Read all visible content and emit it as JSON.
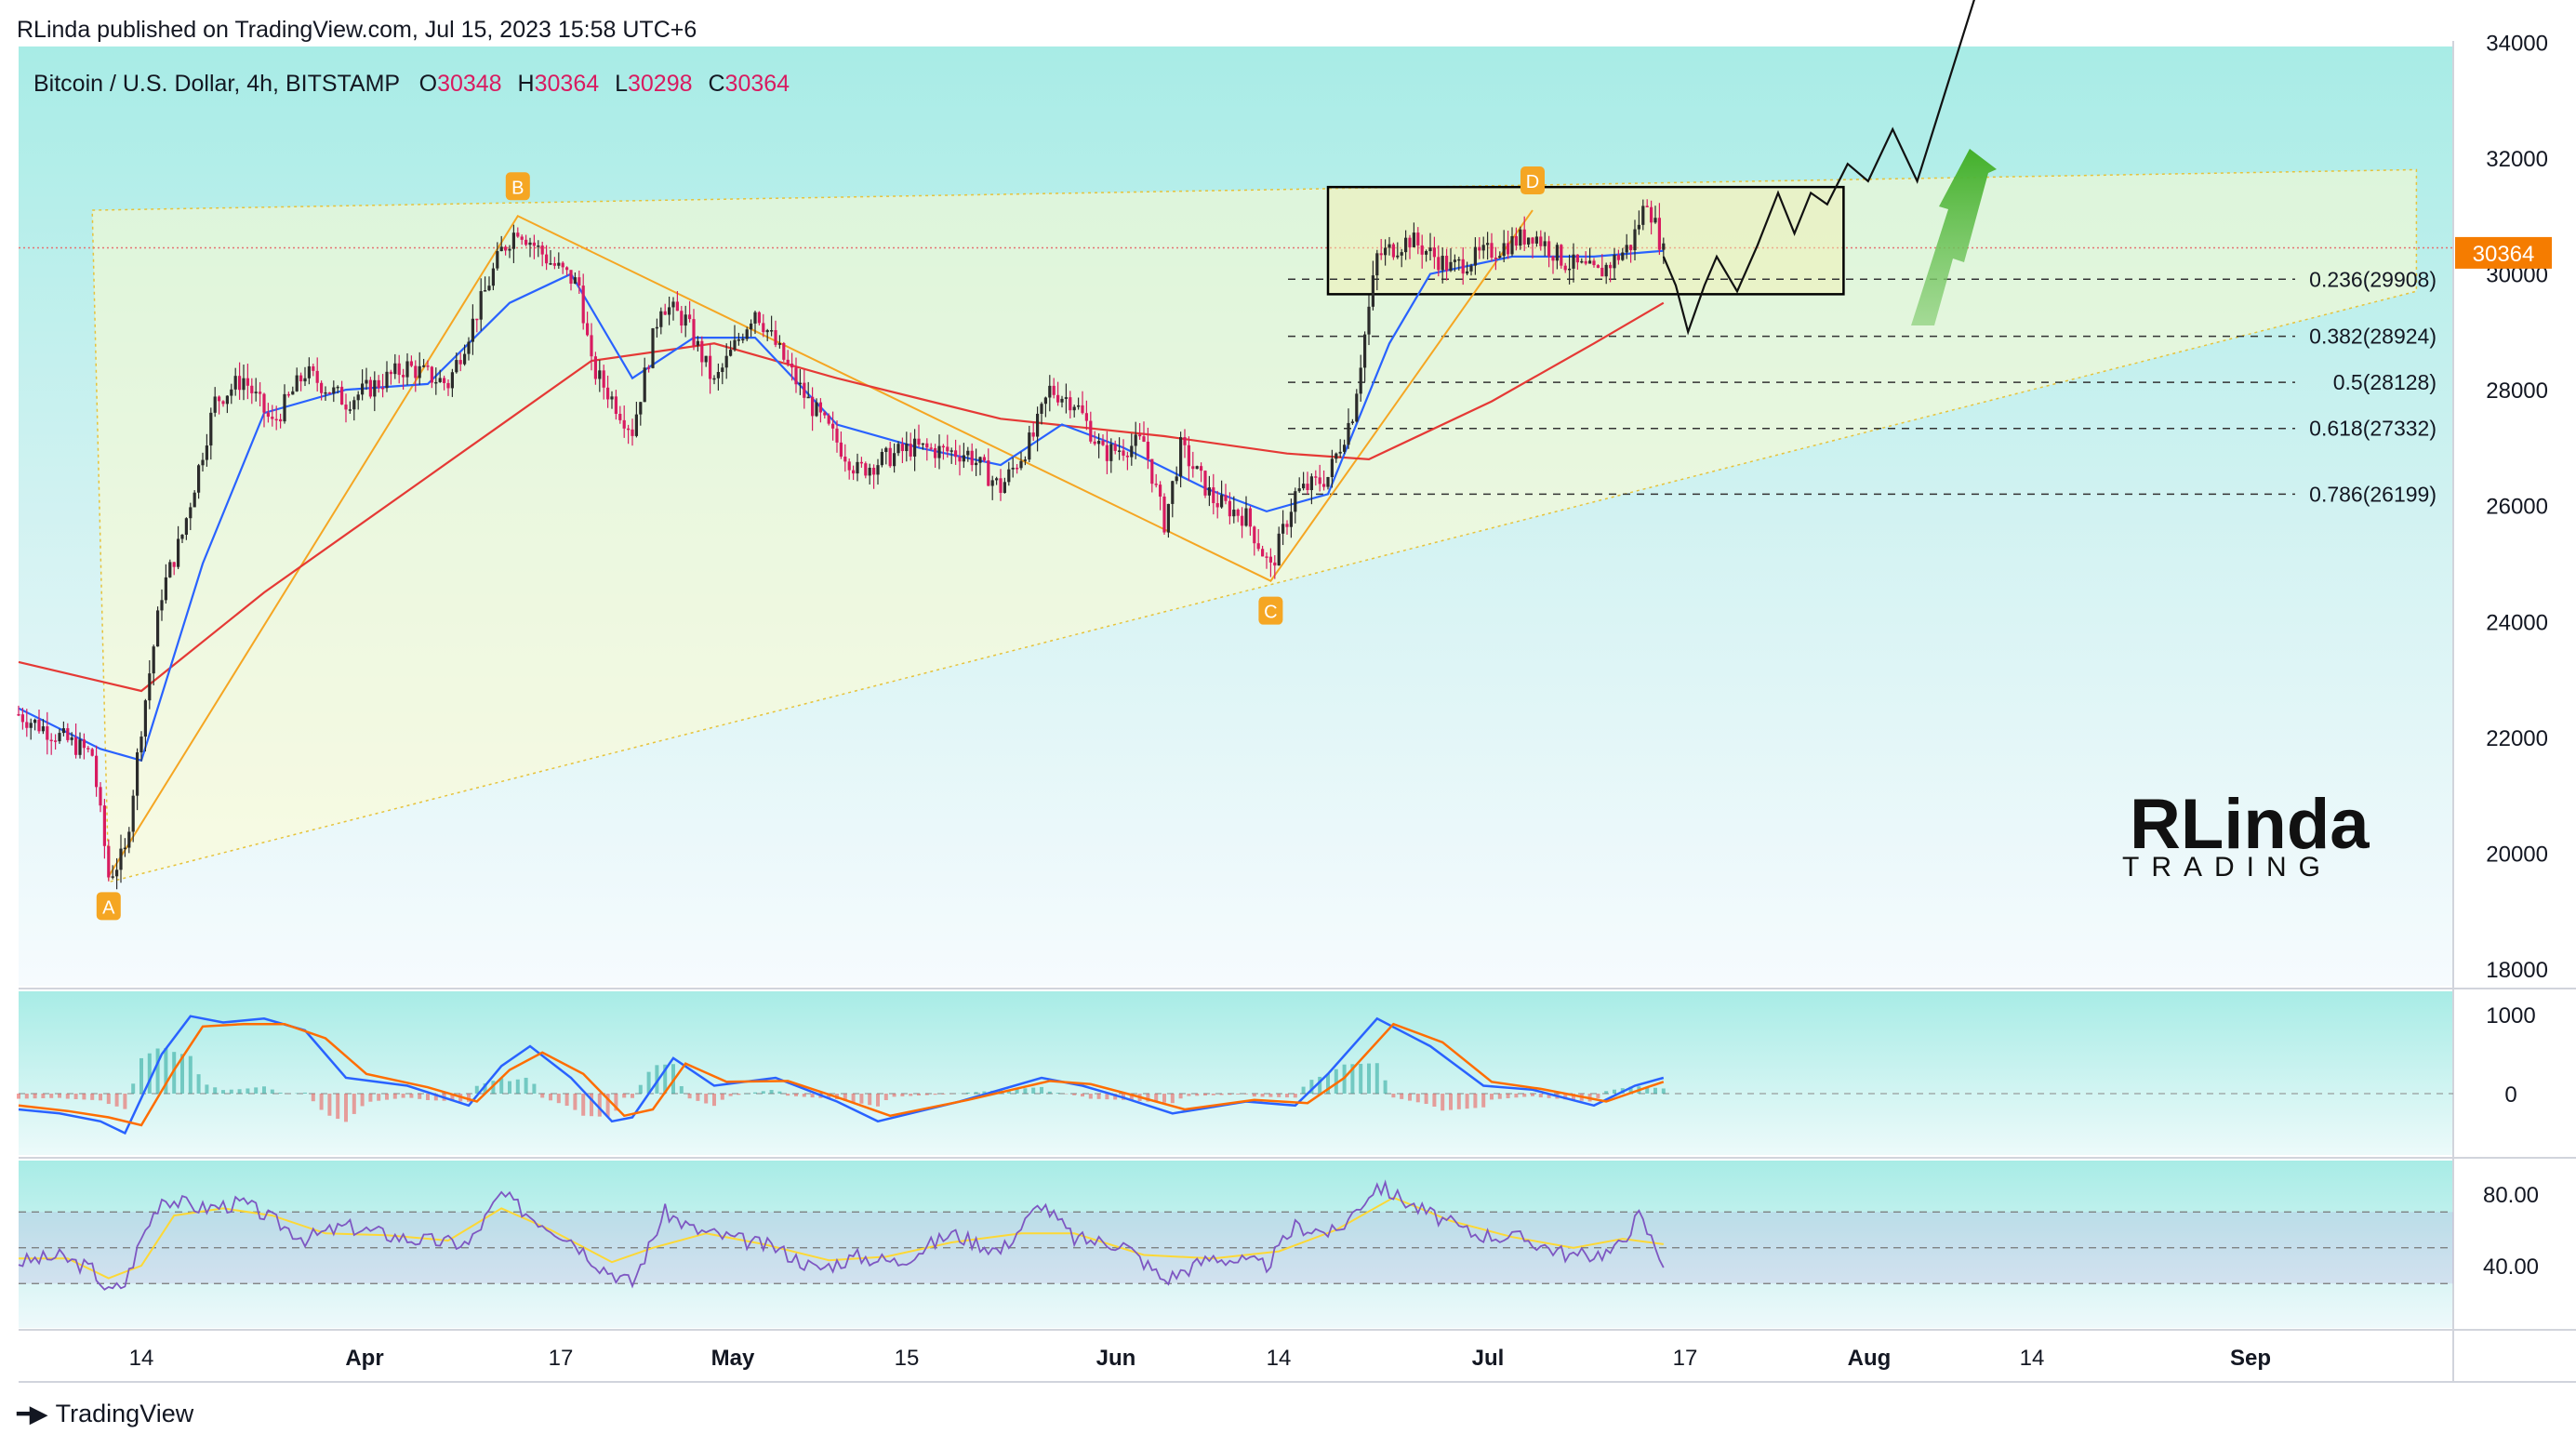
{
  "attribution": "RLinda published on TradingView.com, Jul 15, 2023 15:58 UTC+6",
  "footer": {
    "brand": "TradingView"
  },
  "header": {
    "symbol": "Bitcoin / U.S. Dollar, 4h, BITSTAMP",
    "o_label": "O",
    "o_value": "30348",
    "h_label": "H",
    "h_value": "30364",
    "l_label": "L",
    "l_value": "30298",
    "c_label": "C",
    "c_value": "30364"
  },
  "watermark": {
    "line1": "RLinda",
    "line2": "TRADING"
  },
  "colors": {
    "bull": "#2b2b2b",
    "bear": "#d81b60",
    "ema_fast": "#2962ff",
    "ema_slow": "#e53935",
    "pattern": "#f5a623",
    "price_tag": "#f57c00",
    "arrow": "#4caf50",
    "rsi_line": "#7e57c2",
    "rsi_signal": "#fdd835",
    "macd": "#2962ff",
    "macd_signal": "#ff6d00"
  },
  "chart_data": [
    {
      "type": "candlestick",
      "title": "Bitcoin / U.S. Dollar, 4h, BITSTAMP",
      "x_ticks": [
        "14",
        "Apr",
        "17",
        "May",
        "15",
        "Jun",
        "14",
        "Jul",
        "17",
        "Aug",
        "14",
        "Sep"
      ],
      "ylim": [
        17500,
        36000
      ],
      "y_ticks": [
        18000,
        20000,
        22000,
        24000,
        26000,
        28000,
        30000,
        32000,
        34000
      ],
      "last_price": "30364",
      "price_path": [
        {
          "x": 0,
          "y": 22400
        },
        {
          "x": 18,
          "y": 21700
        },
        {
          "x": 22,
          "y": 19600
        },
        {
          "x": 26,
          "y": 20000
        },
        {
          "x": 30,
          "y": 22200
        },
        {
          "x": 35,
          "y": 24500
        },
        {
          "x": 40,
          "y": 25500
        },
        {
          "x": 48,
          "y": 27800
        },
        {
          "x": 55,
          "y": 28200
        },
        {
          "x": 62,
          "y": 27400
        },
        {
          "x": 70,
          "y": 28300
        },
        {
          "x": 80,
          "y": 27800
        },
        {
          "x": 95,
          "y": 28400
        },
        {
          "x": 105,
          "y": 28100
        },
        {
          "x": 118,
          "y": 30400
        },
        {
          "x": 122,
          "y": 30800
        },
        {
          "x": 130,
          "y": 30200
        },
        {
          "x": 137,
          "y": 29800
        },
        {
          "x": 140,
          "y": 28400
        },
        {
          "x": 150,
          "y": 27300
        },
        {
          "x": 157,
          "y": 29500
        },
        {
          "x": 163,
          "y": 29200
        },
        {
          "x": 170,
          "y": 28100
        },
        {
          "x": 180,
          "y": 29400
        },
        {
          "x": 192,
          "y": 27900
        },
        {
          "x": 205,
          "y": 26600
        },
        {
          "x": 218,
          "y": 27000
        },
        {
          "x": 232,
          "y": 26900
        },
        {
          "x": 240,
          "y": 26300
        },
        {
          "x": 248,
          "y": 27200
        },
        {
          "x": 252,
          "y": 28000
        },
        {
          "x": 258,
          "y": 27800
        },
        {
          "x": 265,
          "y": 26900
        },
        {
          "x": 275,
          "y": 27100
        },
        {
          "x": 280,
          "y": 25700
        },
        {
          "x": 284,
          "y": 27000
        },
        {
          "x": 292,
          "y": 26100
        },
        {
          "x": 300,
          "y": 25800
        },
        {
          "x": 306,
          "y": 24900
        },
        {
          "x": 312,
          "y": 26200
        },
        {
          "x": 320,
          "y": 26500
        },
        {
          "x": 326,
          "y": 27600
        },
        {
          "x": 332,
          "y": 30300
        },
        {
          "x": 340,
          "y": 30600
        },
        {
          "x": 350,
          "y": 30100
        },
        {
          "x": 360,
          "y": 30400
        },
        {
          "x": 370,
          "y": 30700
        },
        {
          "x": 378,
          "y": 30200
        },
        {
          "x": 386,
          "y": 30000
        },
        {
          "x": 394,
          "y": 30500
        },
        {
          "x": 398,
          "y": 31300
        },
        {
          "x": 402,
          "y": 30364
        }
      ],
      "ema_fast": [
        {
          "x": 0,
          "y": 22500
        },
        {
          "x": 20,
          "y": 21800
        },
        {
          "x": 30,
          "y": 21600
        },
        {
          "x": 45,
          "y": 25000
        },
        {
          "x": 60,
          "y": 27600
        },
        {
          "x": 80,
          "y": 28000
        },
        {
          "x": 100,
          "y": 28100
        },
        {
          "x": 120,
          "y": 29500
        },
        {
          "x": 135,
          "y": 30000
        },
        {
          "x": 150,
          "y": 28200
        },
        {
          "x": 165,
          "y": 28900
        },
        {
          "x": 180,
          "y": 28900
        },
        {
          "x": 200,
          "y": 27400
        },
        {
          "x": 220,
          "y": 27000
        },
        {
          "x": 240,
          "y": 26700
        },
        {
          "x": 255,
          "y": 27400
        },
        {
          "x": 270,
          "y": 27000
        },
        {
          "x": 290,
          "y": 26300
        },
        {
          "x": 305,
          "y": 25900
        },
        {
          "x": 320,
          "y": 26200
        },
        {
          "x": 335,
          "y": 28800
        },
        {
          "x": 345,
          "y": 30000
        },
        {
          "x": 365,
          "y": 30300
        },
        {
          "x": 385,
          "y": 30300
        },
        {
          "x": 402,
          "y": 30400
        }
      ],
      "ema_slow": [
        {
          "x": 0,
          "y": 23300
        },
        {
          "x": 30,
          "y": 22800
        },
        {
          "x": 60,
          "y": 24500
        },
        {
          "x": 100,
          "y": 26500
        },
        {
          "x": 120,
          "y": 27500
        },
        {
          "x": 140,
          "y": 28500
        },
        {
          "x": 170,
          "y": 28800
        },
        {
          "x": 200,
          "y": 28200
        },
        {
          "x": 240,
          "y": 27500
        },
        {
          "x": 280,
          "y": 27200
        },
        {
          "x": 310,
          "y": 26900
        },
        {
          "x": 330,
          "y": 26800
        },
        {
          "x": 360,
          "y": 27800
        },
        {
          "x": 385,
          "y": 28800
        },
        {
          "x": 402,
          "y": 29500
        }
      ],
      "abcd_pattern": {
        "A": {
          "x": 22,
          "y": 19600
        },
        "B": {
          "x": 122,
          "y": 31000
        },
        "C": {
          "x": 306,
          "y": 24700
        },
        "D": {
          "x": 370,
          "y": 31100
        }
      },
      "triangle": {
        "left_x": 18,
        "top_left": 31100,
        "top_right": 31800,
        "bottom_left": 19500,
        "bottom_right": 29700,
        "right_x": 586
      },
      "consolidation_box": {
        "x0": 320,
        "x1": 446,
        "y0": 29650,
        "y1": 31500
      },
      "resistance_line": 30450,
      "fibonacci": [
        {
          "label": "0.236(29908)",
          "value": 29908
        },
        {
          "label": "0.382(28924)",
          "value": 28924
        },
        {
          "label": "0.5(28128)",
          "value": 28128
        },
        {
          "label": "0.618(27332)",
          "value": 27332
        },
        {
          "label": "0.786(26199)",
          "value": 26199
        }
      ],
      "forecast_path": [
        {
          "x": 402,
          "y": 30300
        },
        {
          "x": 405,
          "y": 29800
        },
        {
          "x": 408,
          "y": 29000
        },
        {
          "x": 412,
          "y": 29800
        },
        {
          "x": 415,
          "y": 30300
        },
        {
          "x": 420,
          "y": 29700
        },
        {
          "x": 425,
          "y": 30500
        },
        {
          "x": 430,
          "y": 31400
        },
        {
          "x": 434,
          "y": 30700
        },
        {
          "x": 438,
          "y": 31400
        },
        {
          "x": 442,
          "y": 31200
        },
        {
          "x": 447,
          "y": 31900
        },
        {
          "x": 452,
          "y": 31600
        },
        {
          "x": 458,
          "y": 32500
        },
        {
          "x": 464,
          "y": 31600
        },
        {
          "x": 480,
          "y": 35200
        }
      ]
    },
    {
      "type": "line",
      "title": "",
      "ylim": [
        -600,
        1100
      ],
      "y_ticks": [
        0,
        1000
      ],
      "series": [
        {
          "values_xy": [
            [
              0,
              -200
            ],
            [
              10,
              -250
            ],
            [
              20,
              -350
            ],
            [
              26,
              -500
            ],
            [
              35,
              500
            ],
            [
              42,
              980
            ],
            [
              50,
              900
            ],
            [
              60,
              950
            ],
            [
              70,
              800
            ],
            [
              80,
              200
            ],
            [
              95,
              100
            ],
            [
              110,
              -150
            ],
            [
              118,
              350
            ],
            [
              125,
              600
            ],
            [
              135,
              200
            ],
            [
              145,
              -350
            ],
            [
              150,
              -300
            ],
            [
              160,
              450
            ],
            [
              170,
              100
            ],
            [
              185,
              200
            ],
            [
              200,
              -100
            ],
            [
              210,
              -350
            ],
            [
              230,
              -100
            ],
            [
              250,
              200
            ],
            [
              260,
              100
            ],
            [
              270,
              -50
            ],
            [
              282,
              -250
            ],
            [
              300,
              -100
            ],
            [
              312,
              -150
            ],
            [
              320,
              250
            ],
            [
              332,
              950
            ],
            [
              345,
              600
            ],
            [
              358,
              100
            ],
            [
              370,
              50
            ],
            [
              385,
              -150
            ],
            [
              395,
              100
            ],
            [
              402,
              200
            ]
          ]
        },
        {
          "values_xy": [
            [
              0,
              -150
            ],
            [
              12,
              -220
            ],
            [
              22,
              -300
            ],
            [
              30,
              -400
            ],
            [
              38,
              300
            ],
            [
              45,
              850
            ],
            [
              55,
              880
            ],
            [
              65,
              880
            ],
            [
              75,
              700
            ],
            [
              85,
              250
            ],
            [
              100,
              80
            ],
            [
              112,
              -100
            ],
            [
              120,
              300
            ],
            [
              128,
              520
            ],
            [
              138,
              250
            ],
            [
              148,
              -280
            ],
            [
              155,
              -200
            ],
            [
              163,
              380
            ],
            [
              173,
              150
            ],
            [
              188,
              160
            ],
            [
              202,
              -80
            ],
            [
              213,
              -280
            ],
            [
              232,
              -80
            ],
            [
              252,
              160
            ],
            [
              262,
              120
            ],
            [
              273,
              -30
            ],
            [
              285,
              -200
            ],
            [
              302,
              -80
            ],
            [
              315,
              -120
            ],
            [
              324,
              200
            ],
            [
              336,
              880
            ],
            [
              348,
              650
            ],
            [
              360,
              150
            ],
            [
              372,
              60
            ],
            [
              388,
              -100
            ],
            [
              398,
              80
            ],
            [
              402,
              150
            ]
          ]
        }
      ]
    },
    {
      "type": "line",
      "title": "",
      "ylim": [
        20,
        100
      ],
      "y_ticks": [
        40.0,
        80.0
      ],
      "y_tick_labels": [
        "40.00",
        "80.00"
      ],
      "bands": {
        "upper": 70,
        "middle": 50,
        "lower": 30
      },
      "series": [
        {
          "values_xy": [
            [
              0,
              42
            ],
            [
              10,
              45
            ],
            [
              18,
              38
            ],
            [
              22,
              25
            ],
            [
              26,
              30
            ],
            [
              30,
              55
            ],
            [
              35,
              78
            ],
            [
              45,
              72
            ],
            [
              55,
              75
            ],
            [
              70,
              55
            ],
            [
              80,
              62
            ],
            [
              95,
              55
            ],
            [
              110,
              52
            ],
            [
              118,
              80
            ],
            [
              125,
              68
            ],
            [
              135,
              55
            ],
            [
              142,
              40
            ],
            [
              150,
              30
            ],
            [
              158,
              70
            ],
            [
              165,
              60
            ],
            [
              175,
              55
            ],
            [
              185,
              50
            ],
            [
              195,
              38
            ],
            [
              205,
              45
            ],
            [
              215,
              42
            ],
            [
              228,
              58
            ],
            [
              240,
              48
            ],
            [
              250,
              75
            ],
            [
              258,
              55
            ],
            [
              270,
              52
            ],
            [
              280,
              32
            ],
            [
              292,
              45
            ],
            [
              305,
              40
            ],
            [
              312,
              62
            ],
            [
              322,
              58
            ],
            [
              332,
              85
            ],
            [
              342,
              72
            ],
            [
              355,
              58
            ],
            [
              368,
              55
            ],
            [
              380,
              45
            ],
            [
              390,
              48
            ],
            [
              396,
              68
            ],
            [
              402,
              42
            ]
          ]
        },
        {
          "values_xy": [
            [
              0,
              44
            ],
            [
              12,
              44
            ],
            [
              22,
              33
            ],
            [
              30,
              40
            ],
            [
              38,
              68
            ],
            [
              50,
              72
            ],
            [
              62,
              68
            ],
            [
              75,
              58
            ],
            [
              90,
              57
            ],
            [
              105,
              54
            ],
            [
              118,
              72
            ],
            [
              130,
              60
            ],
            [
              145,
              42
            ],
            [
              155,
              50
            ],
            [
              168,
              58
            ],
            [
              182,
              52
            ],
            [
              198,
              43
            ],
            [
              212,
              45
            ],
            [
              228,
              53
            ],
            [
              245,
              58
            ],
            [
              258,
              58
            ],
            [
              275,
              46
            ],
            [
              292,
              44
            ],
            [
              308,
              48
            ],
            [
              322,
              60
            ],
            [
              336,
              78
            ],
            [
              350,
              65
            ],
            [
              365,
              56
            ],
            [
              380,
              50
            ],
            [
              392,
              55
            ],
            [
              402,
              52
            ]
          ]
        }
      ]
    }
  ]
}
